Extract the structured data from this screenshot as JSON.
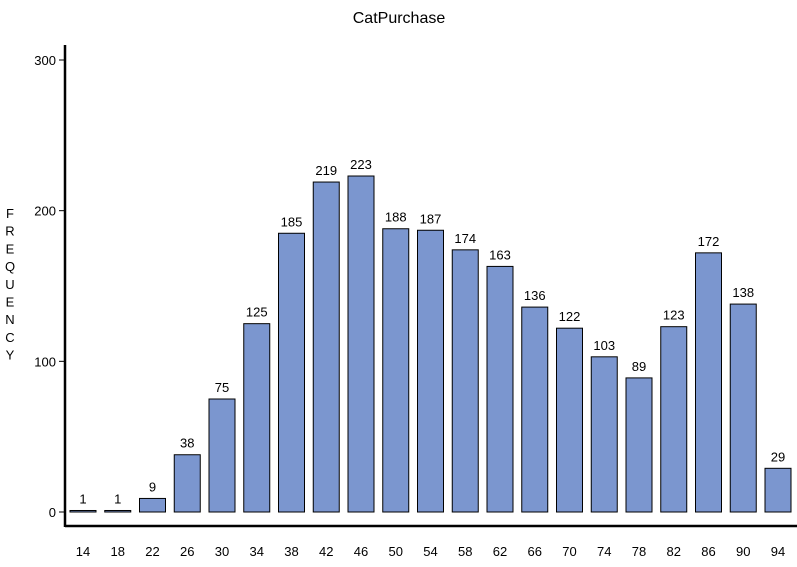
{
  "chart_data": {
    "type": "bar",
    "title": "CatPurchase",
    "xlabel": "",
    "ylabel": "FREQUENCY",
    "categories": [
      "14",
      "18",
      "22",
      "26",
      "30",
      "34",
      "38",
      "42",
      "46",
      "50",
      "54",
      "58",
      "62",
      "66",
      "70",
      "74",
      "78",
      "82",
      "86",
      "90",
      "94"
    ],
    "values": [
      1,
      1,
      9,
      38,
      75,
      125,
      185,
      219,
      223,
      188,
      187,
      174,
      163,
      136,
      122,
      103,
      89,
      123,
      172,
      138,
      29
    ],
    "ylim": [
      0,
      300
    ],
    "yticks": [
      0,
      100,
      200,
      300
    ],
    "bar_color": "#7b96cf",
    "bar_edge_color": "#000000",
    "grid": false,
    "legend": "none"
  }
}
